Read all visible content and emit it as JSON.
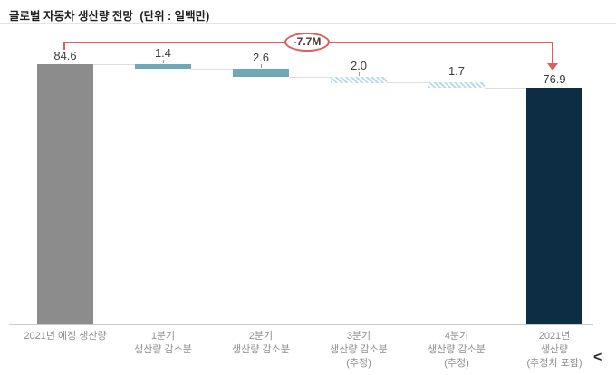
{
  "header": {
    "title": "글로벌 자동차 생산량 전망",
    "unit": "(단위 : 일백만)"
  },
  "chart_data": {
    "type": "bar",
    "subtype": "waterfall",
    "title": "글로벌 자동차 생산량 전망",
    "unit_label": "(단위 : 일백만)",
    "categories": [
      "2021년 예정 생산량",
      "1분기\n생산량 감소분",
      "2분기\n생산량 감소분",
      "3분기\n생산량 감소분\n(추정)",
      "4분기\n생산량 감소분\n(추정)",
      "2021년\n생산량\n(추정치 포함)"
    ],
    "values": [
      84.6,
      1.4,
      2.6,
      2.0,
      1.7,
      76.9
    ],
    "labels": [
      "84.6",
      "1.4",
      "2.6",
      "2.0",
      "1.7",
      "76.9"
    ],
    "roles": [
      "total-start",
      "decrease",
      "decrease",
      "decrease",
      "decrease",
      "total-end"
    ],
    "styles": [
      "solid",
      "solid",
      "solid",
      "hatched",
      "hatched",
      "solid"
    ],
    "ids": [
      "2021-planned",
      "q1-decrease",
      "q2-decrease",
      "q3-decrease-estimated",
      "q4-decrease-estimated",
      "2021-estimated-total"
    ],
    "bar_colors": [
      "#8c8c8c",
      "#6fa8b8",
      "#6fa8b8",
      "#b5dde6",
      "#b5dde6",
      "#0d2d44"
    ],
    "annotation": "-7.7M",
    "total_decrease": 7.7,
    "start_total": 84.6,
    "end_total": 76.9,
    "baseline": 0,
    "grid": "off",
    "legend": "none",
    "colors": {
      "annotation_red": "#e05b5b",
      "annotation_text": "#4a3434",
      "value_label": "#3d3d3d",
      "axis_label": "#8f8f8f",
      "axis_line": "#c9c9c9",
      "connector": "#dddddd"
    }
  },
  "footer": {
    "nav_glyph": "<"
  }
}
